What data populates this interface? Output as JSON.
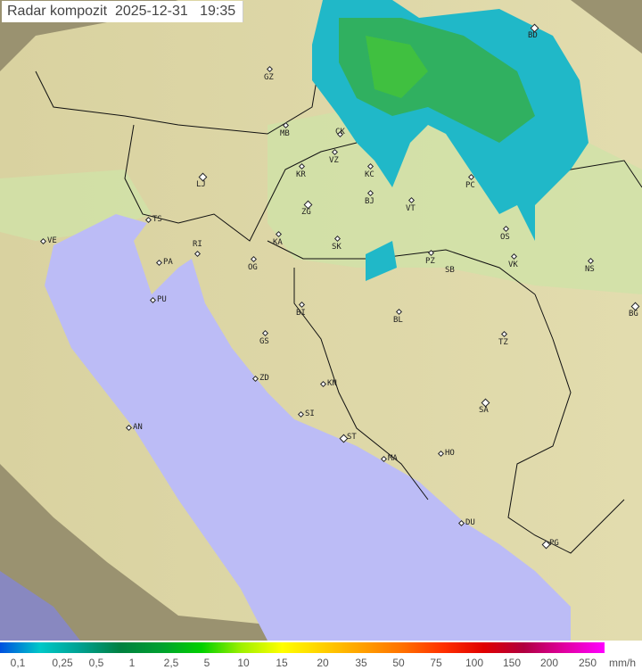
{
  "title": {
    "label": "Radar kompozit",
    "date": "2025-12-31",
    "time": "19:35"
  },
  "colors": {
    "sea": "#bcbcf6",
    "land": "#dcd7a6",
    "outside_coverage": "#9c9470",
    "lowland": "#c8e0a6"
  },
  "cities": [
    "GZ",
    "MB",
    "CK",
    "VZ",
    "KR",
    "KC",
    "BD",
    "PC",
    "LJ",
    "BJ",
    "VT",
    "ZG",
    "TS",
    "VE",
    "RI",
    "KA",
    "SK",
    "OS",
    "PA",
    "OG",
    "PZ",
    "SB",
    "VK",
    "NS",
    "PU",
    "BI",
    "BL",
    "BG",
    "GS",
    "TZ",
    "ZD",
    "KN",
    "SA",
    "SI",
    "AN",
    "ST",
    "HO",
    "MA",
    "DU",
    "PG"
  ],
  "legend": {
    "unit": "mm/h",
    "labels": [
      "0,1",
      "0,25",
      "0,5",
      "1",
      "2,5",
      "5",
      "10",
      "15",
      "20",
      "35",
      "50",
      "75",
      "100",
      "150",
      "200",
      "250"
    ],
    "colors": [
      "#0050e0",
      "#00c8c8",
      "#00a090",
      "#008040",
      "#00a030",
      "#00d000",
      "#a0f000",
      "#ffff00",
      "#ffd000",
      "#ffa000",
      "#ff7000",
      "#ff3000",
      "#e00000",
      "#b00040",
      "#e000a0",
      "#ff00ff"
    ]
  }
}
